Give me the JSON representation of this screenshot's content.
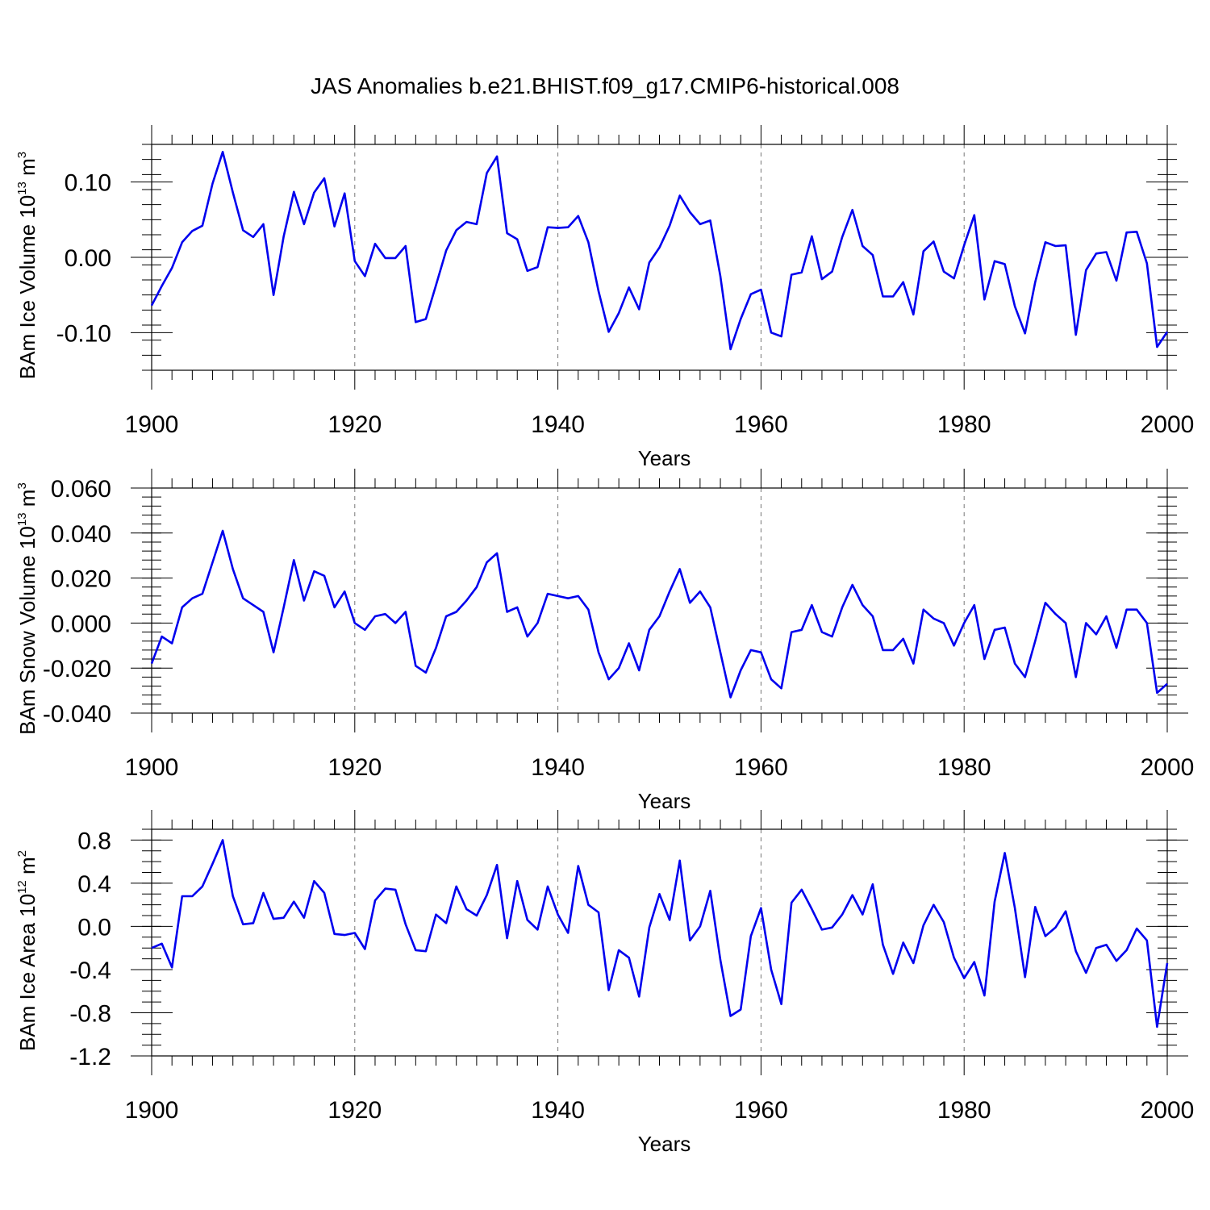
{
  "figure": {
    "title": "JAS Anomalies b.e21.BHIST.f09_g17.CMIP6-historical.008",
    "line_color": "#0000ee"
  },
  "chart_data": [
    {
      "type": "line",
      "ylabel_text": "BAm Ice Volume 10",
      "ylabel_exp": "13",
      "ylabel_unit": " m",
      "ylabel_unit_exp": "3",
      "xlabel": "Years",
      "xlim": [
        1900,
        2000
      ],
      "ylim": [
        -0.15,
        0.15
      ],
      "xticks": [
        1900,
        1920,
        1940,
        1960,
        1980,
        2000
      ],
      "xtick_labels": [
        "1900",
        "1920",
        "1940",
        "1960",
        "1980",
        "2000"
      ],
      "yticks": [
        -0.1,
        0.0,
        0.1
      ],
      "ytick_labels": [
        "-0.10",
        "0.00",
        "0.10"
      ],
      "y_minor_step": 0.02,
      "grid": "vertical dashed at major x ticks",
      "series": [
        {
          "x_start": 1900,
          "values": [
            -0.064,
            -0.038,
            -0.014,
            0.02,
            0.035,
            0.042,
            0.098,
            0.14,
            0.086,
            0.036,
            0.027,
            0.044,
            -0.05,
            0.028,
            0.087,
            0.044,
            0.086,
            0.105,
            0.041,
            0.085,
            -0.005,
            -0.025,
            0.018,
            -0.001,
            -0.001,
            0.015,
            -0.086,
            -0.082,
            -0.037,
            0.009,
            0.036,
            0.047,
            0.044,
            0.112,
            0.134,
            0.032,
            0.024,
            -0.018,
            -0.013,
            0.04,
            0.039,
            0.04,
            0.055,
            0.02,
            -0.045,
            -0.099,
            -0.074,
            -0.04,
            -0.069,
            -0.007,
            0.013,
            0.042,
            0.082,
            0.06,
            0.044,
            0.049,
            -0.025,
            -0.122,
            -0.082,
            -0.049,
            -0.043,
            -0.1,
            -0.105,
            -0.023,
            -0.02,
            0.028,
            -0.029,
            -0.019,
            0.027,
            0.063,
            0.015,
            0.003,
            -0.052,
            -0.052,
            -0.033,
            -0.076,
            0.008,
            0.021,
            -0.019,
            -0.028,
            0.016,
            0.056,
            -0.056,
            -0.005,
            -0.009,
            -0.065,
            -0.101,
            -0.033,
            0.02,
            0.015,
            0.016,
            -0.103,
            -0.017,
            0.005,
            0.007,
            -0.031,
            0.033,
            0.034,
            -0.008,
            -0.119,
            -0.099
          ]
        }
      ]
    },
    {
      "type": "line",
      "ylabel_text": "BAm Snow Volume 10",
      "ylabel_exp": "13",
      "ylabel_unit": " m",
      "ylabel_unit_exp": "3",
      "xlabel": "Years",
      "xlim": [
        1900,
        2000
      ],
      "ylim": [
        -0.04,
        0.06
      ],
      "xticks": [
        1900,
        1920,
        1940,
        1960,
        1980,
        2000
      ],
      "xtick_labels": [
        "1900",
        "1920",
        "1940",
        "1960",
        "1980",
        "2000"
      ],
      "yticks": [
        -0.04,
        -0.02,
        0.0,
        0.02,
        0.04,
        0.06
      ],
      "ytick_labels": [
        "-0.040",
        "-0.020",
        "0.000",
        "0.020",
        "0.040",
        "0.060"
      ],
      "y_minor_step": 0.004,
      "grid": "vertical dashed at major x ticks",
      "series": [
        {
          "x_start": 1900,
          "values": [
            -0.018,
            -0.006,
            -0.009,
            0.007,
            0.011,
            0.013,
            0.027,
            0.041,
            0.024,
            0.011,
            0.008,
            0.005,
            -0.013,
            0.007,
            0.028,
            0.01,
            0.023,
            0.021,
            0.007,
            0.014,
            0.0,
            -0.003,
            0.003,
            0.004,
            0.0,
            0.005,
            -0.019,
            -0.022,
            -0.011,
            0.003,
            0.005,
            0.01,
            0.016,
            0.027,
            0.031,
            0.005,
            0.007,
            -0.006,
            0.0,
            0.013,
            0.012,
            0.011,
            0.012,
            0.006,
            -0.013,
            -0.025,
            -0.02,
            -0.009,
            -0.021,
            -0.003,
            0.003,
            0.014,
            0.024,
            0.009,
            0.014,
            0.007,
            -0.013,
            -0.033,
            -0.021,
            -0.012,
            -0.013,
            -0.025,
            -0.029,
            -0.004,
            -0.003,
            0.008,
            -0.004,
            -0.006,
            0.007,
            0.017,
            0.008,
            0.003,
            -0.012,
            -0.012,
            -0.007,
            -0.018,
            0.006,
            0.002,
            0.0,
            -0.01,
            0.0,
            0.008,
            -0.016,
            -0.003,
            -0.002,
            -0.018,
            -0.024,
            -0.008,
            0.009,
            0.004,
            0.0,
            -0.024,
            0.0,
            -0.005,
            0.003,
            -0.011,
            0.006,
            0.006,
            0.0,
            -0.031,
            -0.027
          ]
        }
      ]
    },
    {
      "type": "line",
      "ylabel_text": "BAm Ice Area 10",
      "ylabel_exp": "12",
      "ylabel_unit": " m",
      "ylabel_unit_exp": "2",
      "xlabel": "Years",
      "xlim": [
        1900,
        2000
      ],
      "ylim": [
        -1.2,
        0.9
      ],
      "xticks": [
        1900,
        1920,
        1940,
        1960,
        1980,
        2000
      ],
      "xtick_labels": [
        "1900",
        "1920",
        "1940",
        "1960",
        "1980",
        "2000"
      ],
      "yticks": [
        -1.2,
        -0.8,
        -0.4,
        0.0,
        0.4,
        0.8
      ],
      "ytick_labels": [
        "-1.2",
        "-0.8",
        "-0.4",
        "0.0",
        "0.4",
        "0.8"
      ],
      "y_minor_step": 0.1,
      "grid": "vertical dashed at major x ticks",
      "series": [
        {
          "x_start": 1900,
          "values": [
            -0.2,
            -0.16,
            -0.38,
            0.28,
            0.28,
            0.37,
            0.58,
            0.8,
            0.28,
            0.02,
            0.03,
            0.31,
            0.07,
            0.08,
            0.23,
            0.08,
            0.42,
            0.31,
            -0.07,
            -0.08,
            -0.06,
            -0.21,
            0.24,
            0.35,
            0.34,
            0.02,
            -0.22,
            -0.23,
            0.11,
            0.03,
            0.37,
            0.16,
            0.1,
            0.29,
            0.57,
            -0.11,
            0.42,
            0.06,
            -0.03,
            0.37,
            0.11,
            -0.06,
            0.56,
            0.2,
            0.13,
            -0.59,
            -0.22,
            -0.29,
            -0.65,
            -0.01,
            0.3,
            0.06,
            0.61,
            -0.13,
            0.0,
            0.33,
            -0.31,
            -0.83,
            -0.77,
            -0.09,
            0.17,
            -0.4,
            -0.72,
            0.22,
            0.34,
            0.16,
            -0.03,
            -0.01,
            0.11,
            0.29,
            0.11,
            0.39,
            -0.17,
            -0.44,
            -0.15,
            -0.34,
            0.01,
            0.2,
            0.04,
            -0.29,
            -0.48,
            -0.33,
            -0.64,
            0.23,
            0.68,
            0.17,
            -0.47,
            0.18,
            -0.09,
            -0.01,
            0.14,
            -0.23,
            -0.43,
            -0.2,
            -0.17,
            -0.32,
            -0.22,
            -0.02,
            -0.13,
            -0.93,
            -0.34
          ]
        }
      ]
    }
  ]
}
